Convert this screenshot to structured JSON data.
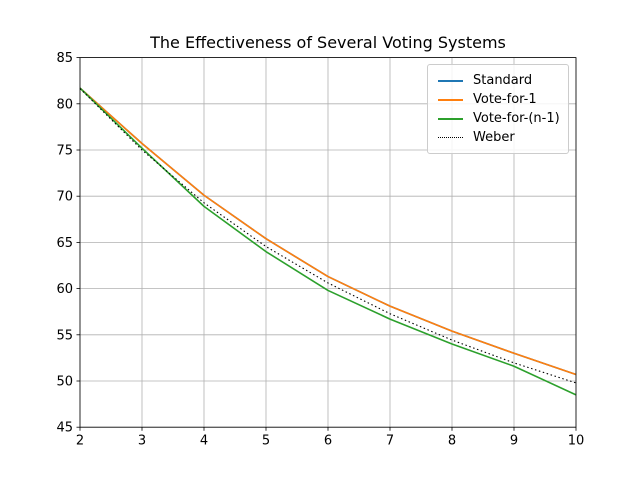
{
  "chart_data": {
    "type": "line",
    "title": "The Effectiveness of Several Voting Systems",
    "xlabel": "",
    "ylabel": "",
    "xlim": [
      2,
      10
    ],
    "ylim": [
      45,
      85
    ],
    "x_ticks": [
      2,
      3,
      4,
      5,
      6,
      7,
      8,
      9,
      10
    ],
    "y_ticks": [
      45,
      50,
      55,
      60,
      65,
      70,
      75,
      80,
      85
    ],
    "grid": true,
    "grid_color": "#b0b0b0",
    "legend_position": "upper right",
    "x": [
      2,
      3,
      4,
      5,
      6,
      7,
      8,
      9,
      10
    ],
    "series": [
      {
        "name": "Standard",
        "color": "#1f77b4",
        "style": "solid",
        "values": [
          81.7,
          75.7,
          70.1,
          65.4,
          61.3,
          58.1,
          55.4,
          53.0,
          50.7
        ]
      },
      {
        "name": "Vote-for-1",
        "color": "#ff7f0e",
        "style": "solid",
        "values": [
          81.7,
          75.7,
          70.1,
          65.4,
          61.3,
          58.1,
          55.4,
          53.0,
          50.7
        ]
      },
      {
        "name": "Vote-for-(n-1)",
        "color": "#2ca02c",
        "style": "solid",
        "values": [
          81.7,
          75.2,
          68.9,
          64.0,
          59.8,
          56.7,
          54.0,
          51.6,
          48.5
        ]
      },
      {
        "name": "Weber",
        "color": "#000000",
        "style": "dotted",
        "values": [
          81.65,
          75.0,
          69.28,
          64.55,
          60.61,
          57.28,
          54.43,
          51.96,
          49.79
        ]
      }
    ]
  }
}
